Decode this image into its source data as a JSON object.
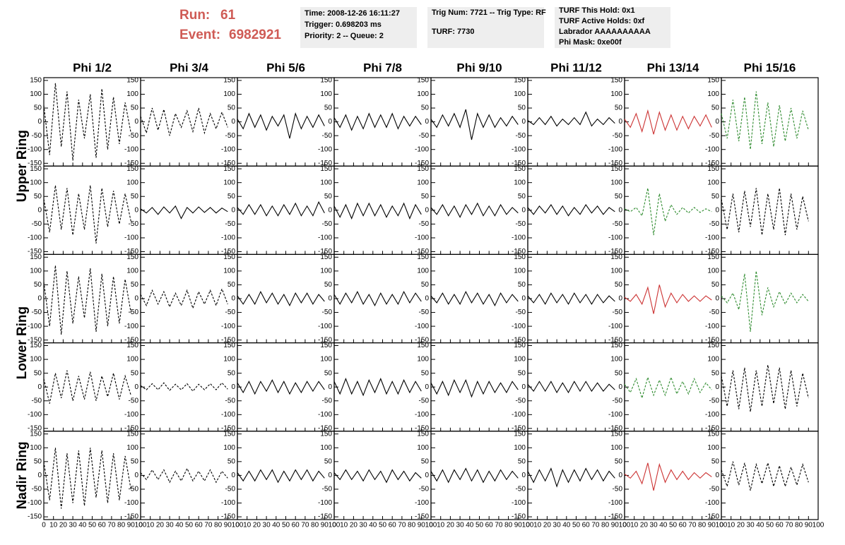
{
  "header": {
    "run_label": "Run:",
    "run": "61",
    "event_label": "Event:",
    "event": "6982921",
    "box1": [
      "Time: 2008-12-26 16:11:27",
      "Trigger: 0.698203 ms",
      "Priority: 2 -- Queue: 2"
    ],
    "box2": [
      "Trig Num: 7721 -- Trig Type: RF",
      "TURF: 7730"
    ],
    "box3": [
      "TURF This Hold: 0x1",
      "TURF Active Holds: 0xf",
      "Labrador AAAAAAAAAA",
      "Phi Mask: 0xe00f"
    ]
  },
  "chart_data": {
    "type": "line",
    "column_titles": [
      "Phi 1/2",
      "Phi 3/4",
      "Phi 5/6",
      "Phi 7/8",
      "Phi 9/10",
      "Phi 11/12",
      "Phi 13/14",
      "Phi 15/16"
    ],
    "row_titles": [
      "Upper Ring",
      "Lower Ring",
      "Nadir Ring"
    ],
    "xlim": [
      0,
      100
    ],
    "ylim": [
      -160,
      160
    ],
    "xticks": [
      0,
      10,
      20,
      30,
      40,
      50,
      60,
      70,
      80,
      90,
      100
    ],
    "yticks": [
      -150,
      -100,
      -50,
      0,
      50,
      100,
      150
    ],
    "x": [
      0,
      6,
      12,
      18,
      24,
      30,
      36,
      42,
      48,
      54,
      60,
      66,
      72,
      78,
      84,
      90
    ],
    "series": [
      {
        "color": "#000000",
        "dash": true,
        "values": [
          60,
          -120,
          140,
          -90,
          110,
          -140,
          80,
          -60,
          100,
          -130,
          120,
          -100,
          90,
          -80,
          70,
          -40
        ]
      },
      {
        "color": "#000000",
        "dash": true,
        "values": [
          20,
          -40,
          50,
          -30,
          45,
          -50,
          30,
          -20,
          40,
          -35,
          50,
          -40,
          30,
          -25,
          35,
          -20
        ]
      },
      {
        "color": "#000000",
        "dash": false,
        "values": [
          10,
          -25,
          30,
          -20,
          25,
          -30,
          20,
          -15,
          25,
          -60,
          30,
          -25,
          20,
          -20,
          25,
          -15
        ]
      },
      {
        "color": "#000000",
        "dash": false,
        "values": [
          15,
          -20,
          25,
          -30,
          20,
          -25,
          30,
          -20,
          25,
          -20,
          30,
          -25,
          20,
          -15,
          20,
          -10
        ]
      },
      {
        "color": "#000000",
        "dash": false,
        "values": [
          10,
          -20,
          25,
          -15,
          30,
          -20,
          45,
          -65,
          30,
          -20,
          25,
          -20,
          15,
          -15,
          20,
          -10
        ]
      },
      {
        "color": "#000000",
        "dash": false,
        "values": [
          5,
          -10,
          15,
          -10,
          20,
          -15,
          10,
          -10,
          15,
          -10,
          35,
          -15,
          10,
          -10,
          15,
          -5
        ]
      },
      {
        "color": "#cc3333",
        "dash": false,
        "values": [
          10,
          -20,
          30,
          -35,
          40,
          -45,
          35,
          -30,
          25,
          -30,
          20,
          -25,
          20,
          -15,
          25,
          -20
        ]
      },
      {
        "color": "#2e8b2e",
        "dash": true,
        "values": [
          30,
          -60,
          80,
          -70,
          90,
          -100,
          110,
          -80,
          70,
          -90,
          60,
          -70,
          50,
          -60,
          40,
          -30
        ]
      },
      {
        "color": "#000000",
        "dash": true,
        "values": [
          40,
          -80,
          90,
          -70,
          80,
          -90,
          60,
          -70,
          90,
          -120,
          80,
          -60,
          70,
          -50,
          60,
          -40
        ]
      },
      {
        "color": "#000000",
        "dash": false,
        "values": [
          5,
          -10,
          10,
          -15,
          12,
          -10,
          15,
          -30,
          10,
          -10,
          12,
          -8,
          10,
          -10,
          8,
          -5
        ]
      },
      {
        "color": "#000000",
        "dash": false,
        "values": [
          10,
          -15,
          20,
          -15,
          20,
          -20,
          15,
          -20,
          20,
          -15,
          25,
          -20,
          15,
          -20,
          30,
          -10
        ]
      },
      {
        "color": "#000000",
        "dash": false,
        "values": [
          15,
          -25,
          20,
          -30,
          25,
          -20,
          25,
          -20,
          20,
          -25,
          15,
          -20,
          25,
          -30,
          20,
          -15
        ]
      },
      {
        "color": "#000000",
        "dash": false,
        "values": [
          10,
          -15,
          20,
          -20,
          15,
          -25,
          20,
          -15,
          25,
          -20,
          15,
          -20,
          20,
          -15,
          10,
          -10
        ]
      },
      {
        "color": "#000000",
        "dash": false,
        "values": [
          10,
          -15,
          15,
          -10,
          20,
          -15,
          15,
          -20,
          10,
          -15,
          20,
          -10,
          15,
          -15,
          10,
          -5
        ]
      },
      {
        "color": "#2e8b2e",
        "dash": true,
        "values": [
          5,
          -5,
          10,
          -20,
          80,
          -90,
          60,
          -40,
          20,
          -15,
          10,
          -10,
          10,
          -8,
          5,
          -5
        ]
      },
      {
        "color": "#000000",
        "dash": true,
        "values": [
          40,
          -70,
          60,
          -80,
          70,
          -60,
          80,
          -90,
          60,
          -70,
          80,
          -90,
          60,
          -70,
          50,
          -40
        ]
      },
      {
        "color": "#000000",
        "dash": true,
        "values": [
          60,
          -100,
          120,
          -130,
          100,
          -90,
          80,
          -70,
          110,
          -120,
          90,
          -100,
          80,
          -90,
          70,
          -50
        ]
      },
      {
        "color": "#000000",
        "dash": true,
        "values": [
          15,
          -25,
          30,
          -20,
          25,
          -30,
          20,
          -25,
          30,
          -35,
          25,
          -20,
          30,
          -25,
          35,
          -20
        ]
      },
      {
        "color": "#000000",
        "dash": false,
        "values": [
          10,
          -20,
          15,
          -20,
          25,
          -15,
          20,
          -20,
          15,
          -25,
          20,
          -15,
          20,
          -20,
          15,
          -10
        ]
      },
      {
        "color": "#000000",
        "dash": false,
        "values": [
          15,
          -20,
          20,
          -15,
          25,
          -20,
          15,
          -25,
          20,
          -20,
          15,
          -20,
          25,
          -15,
          20,
          -10
        ]
      },
      {
        "color": "#000000",
        "dash": false,
        "values": [
          10,
          -15,
          20,
          -20,
          15,
          -20,
          25,
          -15,
          20,
          -20,
          15,
          -25,
          20,
          -15,
          15,
          -10
        ]
      },
      {
        "color": "#000000",
        "dash": false,
        "values": [
          10,
          -15,
          15,
          -20,
          20,
          -15,
          15,
          -20,
          20,
          -15,
          15,
          -20,
          15,
          -15,
          10,
          -10
        ]
      },
      {
        "color": "#cc3333",
        "dash": false,
        "values": [
          5,
          -10,
          15,
          -20,
          40,
          -55,
          50,
          -30,
          20,
          -15,
          15,
          -10,
          10,
          -10,
          10,
          -5
        ]
      },
      {
        "color": "#2e8b2e",
        "dash": true,
        "values": [
          10,
          -15,
          20,
          -40,
          90,
          -120,
          100,
          -60,
          40,
          -30,
          25,
          -20,
          20,
          -15,
          15,
          -10
        ]
      },
      {
        "color": "#000000",
        "dash": true,
        "values": [
          30,
          -60,
          50,
          -40,
          60,
          -50,
          40,
          -45,
          55,
          -50,
          40,
          -35,
          50,
          -45,
          40,
          -30
        ]
      },
      {
        "color": "#000000",
        "dash": true,
        "values": [
          5,
          -10,
          12,
          -10,
          15,
          -12,
          10,
          -10,
          12,
          -15,
          10,
          -10,
          12,
          -10,
          15,
          -8
        ]
      },
      {
        "color": "#000000",
        "dash": false,
        "values": [
          15,
          -20,
          20,
          -25,
          20,
          -15,
          25,
          -20,
          20,
          -25,
          15,
          -20,
          20,
          -15,
          20,
          -10
        ]
      },
      {
        "color": "#000000",
        "dash": false,
        "values": [
          20,
          -25,
          30,
          -25,
          20,
          -30,
          25,
          -20,
          30,
          -25,
          20,
          -25,
          25,
          -20,
          20,
          -15
        ]
      },
      {
        "color": "#000000",
        "dash": false,
        "values": [
          15,
          -25,
          20,
          -30,
          25,
          -20,
          25,
          -35,
          20,
          -25,
          20,
          -20,
          15,
          -20,
          20,
          -10
        ]
      },
      {
        "color": "#000000",
        "dash": false,
        "values": [
          10,
          -15,
          20,
          -15,
          20,
          -20,
          15,
          -20,
          20,
          -15,
          20,
          -15,
          15,
          -15,
          10,
          -10
        ]
      },
      {
        "color": "#2e8b2e",
        "dash": true,
        "values": [
          10,
          -20,
          30,
          -40,
          35,
          -30,
          25,
          -30,
          35,
          -25,
          20,
          -25,
          30,
          -20,
          15,
          -10
        ]
      },
      {
        "color": "#000000",
        "dash": true,
        "values": [
          40,
          -70,
          60,
          -80,
          70,
          -90,
          60,
          -70,
          80,
          -60,
          70,
          -80,
          60,
          -70,
          50,
          -40
        ]
      },
      {
        "color": "#000000",
        "dash": true,
        "values": [
          50,
          -90,
          100,
          -120,
          80,
          -100,
          90,
          -110,
          100,
          -80,
          90,
          -100,
          80,
          -90,
          70,
          -50
        ]
      },
      {
        "color": "#000000",
        "dash": true,
        "values": [
          10,
          -15,
          20,
          -15,
          20,
          -25,
          15,
          -20,
          25,
          -20,
          15,
          -20,
          20,
          -25,
          15,
          -10
        ]
      },
      {
        "color": "#000000",
        "dash": false,
        "values": [
          10,
          -20,
          15,
          -20,
          20,
          -15,
          20,
          -25,
          15,
          -20,
          20,
          -15,
          20,
          -20,
          15,
          -10
        ]
      },
      {
        "color": "#000000",
        "dash": false,
        "values": [
          10,
          -15,
          20,
          -15,
          15,
          -20,
          20,
          -15,
          15,
          -25,
          20,
          -15,
          15,
          -20,
          10,
          -10
        ]
      },
      {
        "color": "#000000",
        "dash": false,
        "values": [
          15,
          -20,
          20,
          -25,
          20,
          -15,
          25,
          -20,
          20,
          -25,
          15,
          -20,
          20,
          -15,
          15,
          -10
        ]
      },
      {
        "color": "#000000",
        "dash": false,
        "values": [
          15,
          -25,
          20,
          -20,
          25,
          -40,
          20,
          -25,
          20,
          -20,
          25,
          -15,
          20,
          -20,
          15,
          -10
        ]
      },
      {
        "color": "#cc3333",
        "dash": false,
        "values": [
          5,
          -10,
          15,
          -30,
          45,
          -55,
          40,
          -25,
          20,
          -15,
          15,
          -15,
          10,
          -10,
          10,
          -5
        ]
      },
      {
        "color": "#000000",
        "dash": true,
        "values": [
          20,
          -40,
          50,
          -35,
          45,
          -55,
          40,
          -30,
          45,
          -40,
          35,
          -40,
          30,
          -35,
          40,
          -25
        ]
      }
    ]
  }
}
